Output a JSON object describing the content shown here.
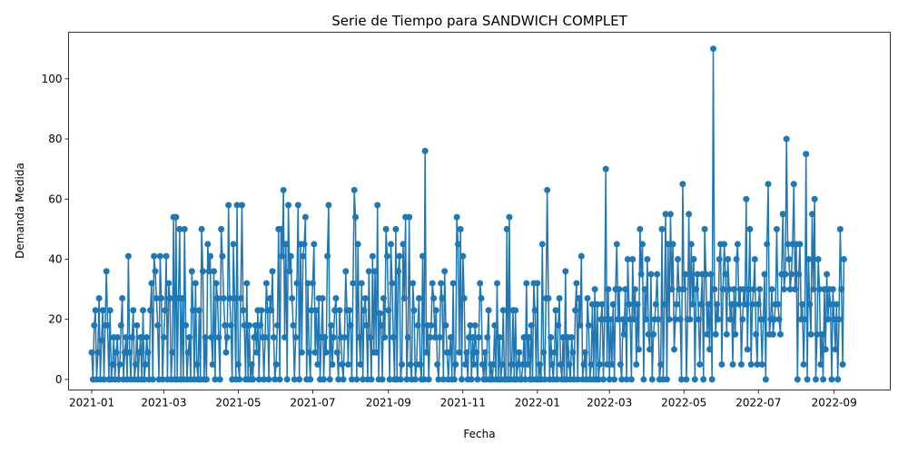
{
  "chart_data": {
    "type": "line",
    "title": "Serie de Tiempo para SANDWICH COMPLET",
    "xlabel": "Fecha",
    "ylabel": "Demanda Medida",
    "x_range": [
      "2020-12-13",
      "2022-10-17"
    ],
    "ylim": [
      -3.5,
      115.5
    ],
    "grid": false,
    "marker": "circle",
    "color": "#1f77b4",
    "x_ticks": [
      "2021-01-01",
      "2021-03-01",
      "2021-05-01",
      "2021-07-01",
      "2021-09-01",
      "2021-11-01",
      "2022-01-01",
      "2022-03-01",
      "2022-05-01",
      "2022-07-01",
      "2022-09-01"
    ],
    "x_tick_labels": [
      "2021-01",
      "2021-03",
      "2021-05",
      "2021-07",
      "2021-09",
      "2021-11",
      "2022-01",
      "2022-03",
      "2022-05",
      "2022-07",
      "2022-09"
    ],
    "y_ticks": [
      0,
      20,
      40,
      60,
      80,
      100
    ],
    "y_tick_labels": [
      "0",
      "20",
      "40",
      "60",
      "80",
      "100"
    ],
    "series": [
      {
        "start_date": "2021-01-01",
        "values": [
          9,
          0,
          18,
          23,
          0,
          9,
          27,
          0,
          13,
          23,
          0,
          18,
          36,
          18,
          0,
          23,
          0,
          5,
          14,
          0,
          9,
          14,
          0,
          5,
          18,
          27,
          0,
          9,
          14,
          0,
          41,
          9,
          0,
          14,
          23,
          0,
          5,
          18,
          0,
          9,
          14,
          0,
          23,
          0,
          5,
          14,
          9,
          0,
          23,
          32,
          0,
          41,
          36,
          27,
          18,
          0,
          41,
          27,
          0,
          14,
          23,
          41,
          0,
          32,
          27,
          0,
          9,
          54,
          0,
          54,
          0,
          27,
          50,
          0,
          27,
          0,
          50,
          18,
          0,
          9,
          14,
          0,
          36,
          23,
          0,
          32,
          5,
          0,
          23,
          0,
          50,
          36,
          0,
          14,
          0,
          45,
          36,
          41,
          14,
          5,
          36,
          0,
          32,
          27,
          14,
          0,
          50,
          41,
          27,
          18,
          9,
          14,
          58,
          27,
          18,
          0,
          45,
          27,
          0,
          58,
          5,
          0,
          27,
          58,
          23,
          18,
          0,
          32,
          0,
          18,
          0,
          5,
          0,
          14,
          18,
          9,
          23,
          0,
          18,
          23,
          14,
          0,
          14,
          32,
          23,
          0,
          27,
          23,
          36,
          14,
          0,
          5,
          18,
          50,
          0,
          50,
          41,
          63,
          14,
          45,
          0,
          58,
          36,
          41,
          27,
          18,
          0,
          14,
          32,
          58,
          0,
          45,
          9,
          41,
          45,
          54,
          0,
          32,
          9,
          0,
          23,
          32,
          45,
          9,
          23,
          5,
          27,
          0,
          14,
          27,
          0,
          14,
          9,
          41,
          58,
          0,
          18,
          5,
          14,
          23,
          27,
          9,
          0,
          23,
          14,
          5,
          0,
          14,
          36,
          23,
          5,
          23,
          18,
          0,
          32,
          63,
          54,
          0,
          45,
          14,
          5,
          32,
          0,
          23,
          27,
          18,
          0,
          36,
          14,
          0,
          41,
          9,
          36,
          9,
          58,
          0,
          22,
          18,
          0,
          27,
          14,
          50,
          41,
          23,
          0,
          45,
          32,
          14,
          0,
          50,
          0,
          36,
          41,
          0,
          5,
          45,
          27,
          54,
          0,
          14,
          54,
          5,
          0,
          32,
          23,
          0,
          5,
          18,
          27,
          5,
          0,
          41,
          0,
          76,
          9,
          18,
          0,
          14,
          18,
          32,
          27,
          14,
          23,
          5,
          0,
          14,
          32,
          27,
          0,
          36,
          18,
          9,
          0,
          9,
          14,
          0,
          32,
          0,
          5,
          54,
          45,
          9,
          50,
          0,
          41,
          27,
          5,
          9,
          0,
          14,
          18,
          0,
          14,
          5,
          18,
          9,
          0,
          14,
          32,
          27,
          5,
          0,
          9,
          0,
          14,
          23,
          0,
          5,
          0,
          5,
          18,
          0,
          32,
          0,
          14,
          0,
          5,
          23,
          0,
          0,
          50,
          0,
          54,
          0,
          5,
          23,
          0,
          23,
          0,
          5,
          9,
          0,
          0,
          5,
          14,
          0,
          32,
          5,
          14,
          0,
          18,
          0,
          32,
          23,
          0,
          32,
          0,
          5,
          0,
          45,
          9,
          0,
          27,
          63,
          27,
          0,
          14,
          5,
          0,
          9,
          23,
          0,
          18,
          27,
          5,
          0,
          14,
          0,
          36,
          0,
          14,
          5,
          0,
          14,
          9,
          0,
          23,
          32,
          0,
          27,
          18,
          41,
          0,
          5,
          9,
          0,
          27,
          18,
          0,
          5,
          25,
          0,
          30,
          0,
          25,
          0,
          5,
          20,
          25,
          0,
          20,
          70,
          5,
          30,
          0,
          20,
          5,
          25,
          0,
          30,
          45,
          20,
          30,
          5,
          0,
          20,
          15,
          30,
          0,
          40,
          25,
          20,
          0,
          40,
          20,
          30,
          5,
          25,
          10,
          50,
          35,
          45,
          0,
          30,
          20,
          40,
          15,
          10,
          35,
          0,
          15,
          20,
          25,
          35,
          20,
          0,
          5,
          50,
          0,
          25,
          55,
          0,
          45,
          20,
          55,
          30,
          45,
          10,
          20,
          25,
          40,
          30,
          20,
          0,
          65,
          30,
          35,
          0,
          20,
          55,
          20,
          45,
          25,
          40,
          0,
          30,
          35,
          20,
          5,
          25,
          35,
          0,
          50,
          35,
          15,
          25,
          10,
          35,
          0,
          110,
          30,
          15,
          25,
          20,
          40,
          45,
          5,
          30,
          45,
          35,
          15,
          40,
          30,
          20,
          25,
          5,
          30,
          15,
          40,
          45,
          25,
          30,
          5,
          20,
          30,
          25,
          60,
          10,
          30,
          50,
          5,
          25,
          30,
          40,
          15,
          5,
          25,
          30,
          20,
          5,
          20,
          35,
          0,
          45,
          65,
          15,
          20,
          30,
          15,
          20,
          25,
          50,
          25,
          20,
          15,
          35,
          55,
          30,
          35,
          80,
          45,
          40,
          30,
          35,
          45,
          65,
          30,
          45,
          0,
          35,
          45,
          20,
          25,
          5,
          20,
          75,
          0,
          40,
          25,
          15,
          55,
          30,
          60,
          0,
          15,
          40,
          30,
          5,
          15,
          0,
          30,
          10,
          35,
          20,
          30,
          25,
          0,
          30,
          20,
          10,
          25,
          0,
          20,
          50,
          30,
          5,
          40
        ]
      }
    ]
  }
}
